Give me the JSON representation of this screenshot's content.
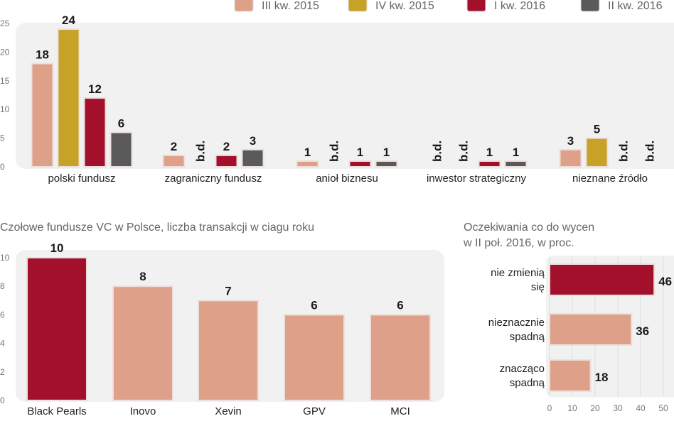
{
  "colors": {
    "q3_2015": "#dfa08a",
    "q4_2015": "#c8a226",
    "q1_2016": "#a3102b",
    "q2_2016": "#5a5a5a",
    "plot_bg": "#f1f1f1"
  },
  "chart_data": [
    {
      "type": "bar",
      "categories": [
        "polski fundusz",
        "zagraniczny fundusz",
        "anioł biznesu",
        "inwestor strategiczny",
        "nieznane źródło"
      ],
      "series": [
        {
          "name": "III kw. 2015",
          "values": [
            18,
            2,
            1,
            null,
            3
          ]
        },
        {
          "name": "IV kw. 2015",
          "values": [
            24,
            null,
            null,
            null,
            5
          ]
        },
        {
          "name": "I kw. 2016",
          "values": [
            12,
            2,
            1,
            1,
            null
          ]
        },
        {
          "name": "II kw. 2016",
          "values": [
            6,
            3,
            1,
            1,
            null
          ]
        }
      ],
      "missing_label": "b.d.",
      "yticks": [
        0,
        5,
        10,
        15,
        20,
        25
      ],
      "ylim": [
        0,
        25
      ],
      "legend": "top-right"
    },
    {
      "type": "bar",
      "title": "Czołowe fundusze VC w Polsce, liczba transakcji w ciagu roku",
      "categories": [
        "Black Pearls",
        "Inovo",
        "Xevin",
        "GPV",
        "MCI"
      ],
      "values": [
        10,
        8,
        7,
        6,
        6
      ],
      "yticks": [
        0,
        2,
        4,
        6,
        8,
        10
      ],
      "ylim": [
        0,
        10
      ]
    },
    {
      "type": "bar",
      "orientation": "horizontal",
      "title_lines": [
        "Oczekiwania co do wycen",
        "w II poł. 2016, w proc."
      ],
      "categories": [
        [
          "nie zmienią",
          "się"
        ],
        [
          "nieznacznie",
          "spadną"
        ],
        [
          "znacząco",
          "spadną"
        ]
      ],
      "values": [
        46,
        36,
        18
      ],
      "xticks": [
        0,
        10,
        20,
        30,
        40,
        50
      ],
      "xlim": [
        0,
        50
      ]
    }
  ]
}
